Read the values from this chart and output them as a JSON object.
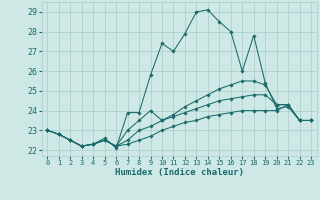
{
  "title": "",
  "xlabel": "Humidex (Indice chaleur)",
  "xlim": [
    -0.5,
    23.5
  ],
  "ylim": [
    21.7,
    29.5
  ],
  "xticks": [
    0,
    1,
    2,
    3,
    4,
    5,
    6,
    7,
    8,
    9,
    10,
    11,
    12,
    13,
    14,
    15,
    16,
    17,
    18,
    19,
    20,
    21,
    22,
    23
  ],
  "yticks": [
    22,
    23,
    24,
    25,
    26,
    27,
    28,
    29
  ],
  "bg_color": "#cde8e5",
  "grid_color": "#aacccc",
  "line_color": "#1a6b6b",
  "lines": [
    {
      "x": [
        0,
        1,
        2,
        3,
        4,
        5,
        6,
        7,
        8,
        9,
        10,
        11,
        12,
        13,
        14,
        15,
        16,
        17,
        18,
        19,
        20,
        21,
        22,
        23
      ],
      "y": [
        23.0,
        22.8,
        22.5,
        22.2,
        22.3,
        22.6,
        22.1,
        23.9,
        23.9,
        25.8,
        27.4,
        27.0,
        27.9,
        29.0,
        29.1,
        28.5,
        28.0,
        26.0,
        27.8,
        25.4,
        24.1,
        24.2,
        23.5,
        23.5
      ]
    },
    {
      "x": [
        0,
        1,
        2,
        3,
        4,
        5,
        6,
        7,
        8,
        9,
        10,
        11,
        12,
        13,
        14,
        15,
        16,
        17,
        18,
        19,
        20,
        21,
        22,
        23
      ],
      "y": [
        23.0,
        22.8,
        22.5,
        22.2,
        22.3,
        22.5,
        22.2,
        23.0,
        23.5,
        24.0,
        23.5,
        23.8,
        24.2,
        24.5,
        24.8,
        25.1,
        25.3,
        25.5,
        25.5,
        25.3,
        24.3,
        24.3,
        23.5,
        23.5
      ]
    },
    {
      "x": [
        0,
        1,
        2,
        3,
        4,
        5,
        6,
        7,
        8,
        9,
        10,
        11,
        12,
        13,
        14,
        15,
        16,
        17,
        18,
        19,
        20,
        21,
        22,
        23
      ],
      "y": [
        23.0,
        22.8,
        22.5,
        22.2,
        22.3,
        22.5,
        22.2,
        22.5,
        23.0,
        23.2,
        23.5,
        23.7,
        23.9,
        24.1,
        24.3,
        24.5,
        24.6,
        24.7,
        24.8,
        24.8,
        24.3,
        24.3,
        23.5,
        23.5
      ]
    },
    {
      "x": [
        0,
        1,
        2,
        3,
        4,
        5,
        6,
        7,
        8,
        9,
        10,
        11,
        12,
        13,
        14,
        15,
        16,
        17,
        18,
        19,
        20,
        21,
        22,
        23
      ],
      "y": [
        23.0,
        22.8,
        22.5,
        22.2,
        22.3,
        22.5,
        22.2,
        22.3,
        22.5,
        22.7,
        23.0,
        23.2,
        23.4,
        23.5,
        23.7,
        23.8,
        23.9,
        24.0,
        24.0,
        24.0,
        24.0,
        24.3,
        23.5,
        23.5
      ]
    }
  ]
}
